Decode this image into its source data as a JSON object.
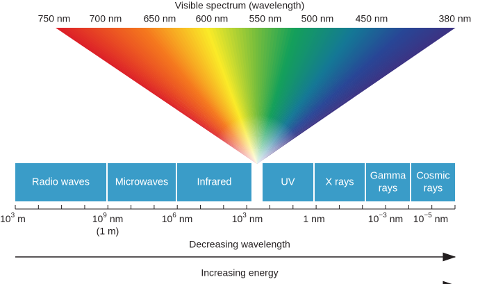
{
  "title": "Visible spectrum (wavelength)",
  "wavelengths": [
    "750 nm",
    "700 nm",
    "650 nm",
    "600 nm",
    "550 nm",
    "500 nm",
    "450 nm",
    "380 nm"
  ],
  "bands": [
    [
      "Radio waves"
    ],
    [
      "Microwaves"
    ],
    [
      "Infrared"
    ],
    [
      "UV"
    ],
    [
      "X rays"
    ],
    [
      "Gamma",
      "rays"
    ],
    [
      "Cosmic",
      "rays"
    ]
  ],
  "scale": [
    {
      "base": "10",
      "exp": "3",
      "unit": "m"
    },
    {
      "base": "10",
      "exp": "9",
      "unit": "nm",
      "note": "(1 m)"
    },
    {
      "base": "10",
      "exp": "6",
      "unit": "nm"
    },
    {
      "base": "10",
      "exp": "3",
      "unit": "nm"
    },
    {
      "base": "1",
      "unit": "nm"
    },
    {
      "base": "10",
      "exp": "−3",
      "unit": "nm"
    },
    {
      "base": "10",
      "exp": "−5",
      "unit": "nm"
    }
  ],
  "arrows": [
    "Decreasing wavelength",
    "Increasing energy"
  ]
}
